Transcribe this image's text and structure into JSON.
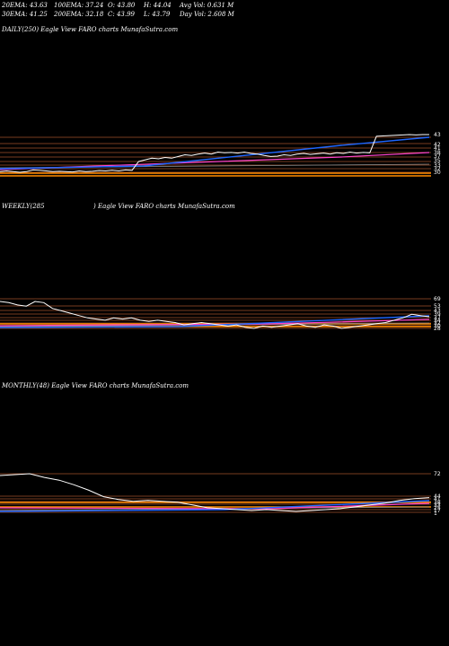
{
  "header": {
    "ema20": "20EMA: 43.63",
    "ema100": "100EMA: 37.24",
    "open": "O: 43.80",
    "high": "H: 44.04",
    "avg_vol": "Avg Vol: 0.631 M",
    "ema30": "30EMA: 41.25",
    "ema200": "200EMA: 32.18",
    "close": "C: 43.99",
    "low": "L: 43.79",
    "day_vol": "Day Vol: 2.608 M"
  },
  "panels": {
    "daily": {
      "label": "DAILY(250) Eagle   View  FARO charts MunafaSutra.com"
    },
    "weekly": {
      "label_a": "WEEKLY(285",
      "label_b": ") Eagle   View  FARO charts MunafaSutra.com"
    },
    "monthly": {
      "label": "MONTHLY(48) Eagle   View  FARO charts MunafaSutra.com"
    }
  },
  "colors": {
    "background": "#000000",
    "price": "#ffffff",
    "level_line": "#a0522d",
    "orange_band": "#ff8c00",
    "blue_ma": "#1e66ff",
    "magenta_ma": "#ff44cc"
  },
  "chart_data": [
    {
      "type": "line",
      "title": "DAILY(250)",
      "right_ticks": [
        "43",
        "42",
        "41",
        "38",
        "37",
        "35",
        "33",
        "32",
        "30"
      ],
      "series": [
        {
          "name": "",
          "values": [
            33,
            33.2,
            33,
            32.8,
            33,
            33.5,
            33.4,
            33.2,
            33,
            33.1,
            33,
            32.9,
            33.2,
            33,
            33.1,
            33.3,
            33.2,
            33.4,
            33.2,
            33.5,
            33.4,
            36,
            36.5,
            37,
            36.8,
            37.2,
            37,
            37.5,
            38,
            37.8,
            38.2,
            38.5,
            38.2,
            38.8,
            38.6,
            38.7,
            38.5,
            38.8,
            38.4,
            38.2,
            37.8,
            37.5,
            37.6,
            38,
            37.8,
            38.2,
            38.4,
            38.1,
            38.3,
            38.5,
            38.2,
            38.6,
            38.4,
            38.8,
            38.5,
            38.7,
            38.6,
            43.5,
            43.6,
            43.7,
            43.8,
            43.9,
            44,
            43.9,
            44,
            43.99
          ]
        }
      ]
    },
    {
      "type": "line",
      "title": "WEEKLY(285)",
      "right_ticks": [
        "69",
        "53",
        "43",
        "39",
        "37",
        "34",
        "32",
        "30",
        "28"
      ],
      "series": [
        {
          "name": "",
          "values": [
            66,
            65,
            63,
            62,
            66,
            65,
            60,
            58,
            56,
            54,
            52,
            51,
            50,
            52,
            51,
            52,
            50,
            49,
            50,
            49,
            48,
            46,
            47,
            48,
            47,
            46,
            45,
            46,
            44,
            43,
            45,
            44,
            45,
            46,
            47,
            45,
            44,
            46,
            45,
            43,
            44,
            45,
            46,
            47,
            48,
            50,
            52,
            55,
            54,
            53
          ]
        }
      ]
    },
    {
      "type": "line",
      "title": "MONTHLY(48)",
      "right_ticks": [
        "72",
        "44",
        "41",
        "38",
        "33",
        "25",
        "17",
        "1"
      ],
      "series": [
        {
          "name": "",
          "values": [
            68,
            69,
            70,
            66,
            63,
            58,
            52,
            45,
            42,
            40,
            41,
            40,
            39,
            36,
            33,
            32,
            31,
            30,
            31,
            30,
            29,
            30,
            31,
            32,
            34,
            36,
            38,
            41,
            43,
            44
          ]
        }
      ]
    }
  ]
}
